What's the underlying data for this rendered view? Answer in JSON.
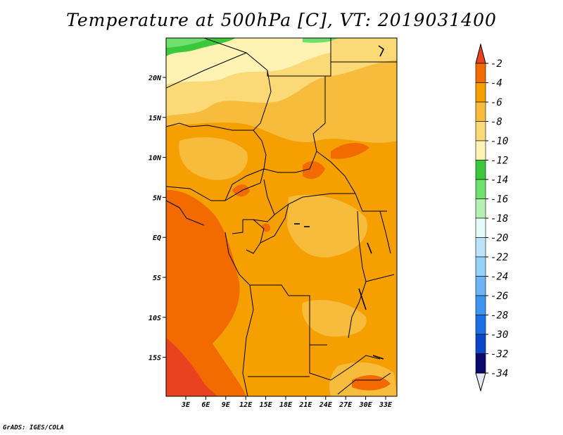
{
  "title": "Temperature at 500hPa [C], VT: 2019031400",
  "credit": "GrADS: IGES/COLA",
  "map": {
    "lon_ticks": [
      "3E",
      "6E",
      "9E",
      "12E",
      "15E",
      "18E",
      "21E",
      "24E",
      "27E",
      "30E",
      "33E"
    ],
    "lat_ticks": [
      "20N",
      "15N",
      "10N",
      "5N",
      "EQ",
      "5S",
      "10S",
      "15S"
    ]
  },
  "colorbar": {
    "labels": [
      "-2",
      "-4",
      "-6",
      "-8",
      "-10",
      "-12",
      "-14",
      "-16",
      "-18",
      "-20",
      "-22",
      "-24",
      "-26",
      "-28",
      "-30",
      "-32",
      "-34"
    ],
    "colors": [
      "#e8421e",
      "#f26a00",
      "#f5a000",
      "#f7bc3c",
      "#fbd977",
      "#fff3b4",
      "#3cc83c",
      "#6ee06e",
      "#b4f0b4",
      "#e6fafa",
      "#bce3f8",
      "#96d2f8",
      "#6eb4f4",
      "#3c96f0",
      "#1e6ee6",
      "#0a46c8",
      "#0a0a6e",
      "#e6e6f4"
    ]
  }
}
